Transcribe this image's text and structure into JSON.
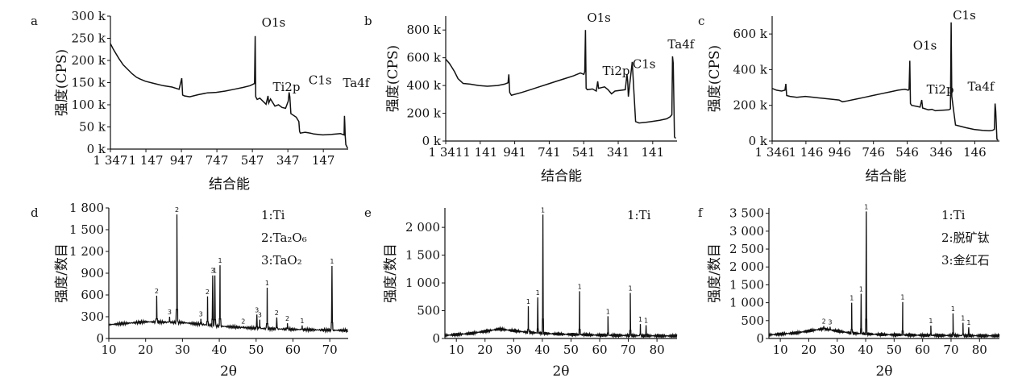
{
  "chart_data": [
    {
      "type": "line",
      "panel_label": "a",
      "xlabel": "结合能",
      "ylabel": "强度(CPS)",
      "xlim": [
        1347,
        7
      ],
      "ylim": [
        0,
        300
      ],
      "x_ticks": [
        {
          "v": 1347,
          "t": "1 347"
        },
        {
          "v": 1147,
          "t": "1 147"
        },
        {
          "v": 947,
          "t": "947"
        },
        {
          "v": 747,
          "t": "747"
        },
        {
          "v": 547,
          "t": "547"
        },
        {
          "v": 347,
          "t": "347"
        },
        {
          "v": 147,
          "t": "147"
        }
      ],
      "y_ticks": [
        {
          "v": 0,
          "t": "0 k"
        },
        {
          "v": 50,
          "t": "50 k"
        },
        {
          "v": 100,
          "t": "100 k"
        },
        {
          "v": 150,
          "t": "150 k"
        },
        {
          "v": 200,
          "t": "200 k"
        },
        {
          "v": 250,
          "t": "250 k"
        },
        {
          "v": 300,
          "t": "300 k"
        }
      ],
      "x": [
        1347,
        1330,
        1300,
        1275,
        1250,
        1225,
        1200,
        1180,
        1150,
        1100,
        1050,
        1000,
        960,
        945,
        940,
        930,
        900,
        850,
        800,
        750,
        700,
        650,
        600,
        560,
        535,
        531,
        528,
        520,
        505,
        470,
        459,
        455,
        445,
        420,
        400,
        380,
        360,
        345,
        340,
        336,
        330,
        300,
        285,
        281,
        277,
        250,
        220,
        200,
        150,
        100,
        50,
        30,
        28,
        26,
        24,
        20,
        10
      ],
      "values": [
        238,
        225,
        205,
        190,
        180,
        170,
        162,
        158,
        153,
        148,
        143,
        140,
        135,
        160,
        122,
        120,
        118,
        123,
        127,
        128,
        131,
        135,
        139,
        143,
        148,
        255,
        118,
        112,
        115,
        101,
        120,
        104,
        113,
        97,
        100,
        94,
        92,
        108,
        128,
        118,
        80,
        72,
        62,
        40,
        36,
        38,
        36,
        34,
        32,
        33,
        35,
        32,
        75,
        58,
        30,
        10,
        2
      ],
      "annotations": [
        {
          "text": "O1s",
          "x": 531,
          "y": 255
        },
        {
          "text": "Ti2p",
          "x": 459,
          "y": 120
        },
        {
          "text": "C1s",
          "x": 285,
          "y": 128
        },
        {
          "text": "Ta4f",
          "x": 28,
          "y": 75
        }
      ]
    },
    {
      "type": "line",
      "panel_label": "b",
      "xlabel": "结合能",
      "ylabel": "强度(CPS)",
      "xlim": [
        1341,
        0
      ],
      "ylim": [
        0,
        900
      ],
      "x_ticks": [
        {
          "v": 1341,
          "t": "1 341"
        },
        {
          "v": 1141,
          "t": "1 141"
        },
        {
          "v": 941,
          "t": "941"
        },
        {
          "v": 741,
          "t": "741"
        },
        {
          "v": 541,
          "t": "541"
        },
        {
          "v": 341,
          "t": "341"
        },
        {
          "v": 141,
          "t": "141"
        }
      ],
      "y_ticks": [
        {
          "v": 0,
          "t": "0 k"
        },
        {
          "v": 200,
          "t": "200 k"
        },
        {
          "v": 400,
          "t": "400 k"
        },
        {
          "v": 600,
          "t": "600 k"
        },
        {
          "v": 800,
          "t": "800 k"
        }
      ],
      "x": [
        1341,
        1320,
        1300,
        1290,
        1270,
        1240,
        1200,
        1150,
        1100,
        1040,
        1000,
        980,
        975,
        970,
        960,
        900,
        850,
        800,
        750,
        700,
        650,
        600,
        560,
        540,
        535,
        531,
        527,
        520,
        490,
        468,
        460,
        455,
        420,
        400,
        380,
        360,
        300,
        290,
        286,
        282,
        260,
        240,
        220,
        180,
        150,
        100,
        60,
        40,
        30,
        26,
        22,
        15,
        8
      ],
      "values": [
        590,
        560,
        520,
        500,
        450,
        415,
        410,
        400,
        395,
        400,
        410,
        420,
        480,
        350,
        330,
        350,
        370,
        390,
        410,
        430,
        450,
        470,
        490,
        480,
        500,
        800,
        380,
        370,
        375,
        360,
        430,
        380,
        390,
        370,
        340,
        360,
        370,
        480,
        430,
        320,
        570,
        140,
        130,
        135,
        140,
        150,
        160,
        175,
        190,
        610,
        560,
        30,
        20
      ],
      "annotations": [
        {
          "text": "O1s",
          "x": 531,
          "y": 800
        },
        {
          "text": "Ti2p",
          "x": 460,
          "y": 430
        },
        {
          "text": "C1s",
          "x": 286,
          "y": 480
        },
        {
          "text": "Ta4f",
          "x": 26,
          "y": 610
        }
      ]
    },
    {
      "type": "line",
      "panel_label": "c",
      "xlabel": "结合能",
      "ylabel": "强度(CPS)",
      "xlim": [
        1346,
        0
      ],
      "ylim": [
        0,
        700
      ],
      "x_ticks": [
        {
          "v": 1346,
          "t": "1 346"
        },
        {
          "v": 1146,
          "t": "1 146"
        },
        {
          "v": 946,
          "t": "946"
        },
        {
          "v": 746,
          "t": "746"
        },
        {
          "v": 546,
          "t": "546"
        },
        {
          "v": 346,
          "t": "346"
        },
        {
          "v": 146,
          "t": "146"
        }
      ],
      "y_ticks": [
        {
          "v": 0,
          "t": "0 k"
        },
        {
          "v": 200,
          "t": "200 k"
        },
        {
          "v": 400,
          "t": "400 k"
        },
        {
          "v": 600,
          "t": "600 k"
        }
      ],
      "x": [
        1346,
        1320,
        1290,
        1270,
        1265,
        1260,
        1240,
        1200,
        1150,
        1100,
        1050,
        1000,
        950,
        930,
        900,
        850,
        800,
        750,
        700,
        650,
        600,
        560,
        540,
        535,
        531,
        527,
        520,
        470,
        460,
        455,
        420,
        400,
        380,
        300,
        290,
        286,
        282,
        260,
        200,
        150,
        100,
        60,
        40,
        30,
        26,
        22,
        15,
        8
      ],
      "values": [
        295,
        285,
        280,
        285,
        320,
        255,
        250,
        245,
        250,
        245,
        240,
        235,
        230,
        220,
        225,
        235,
        245,
        255,
        265,
        275,
        285,
        290,
        285,
        290,
        450,
        210,
        200,
        190,
        230,
        185,
        175,
        178,
        170,
        175,
        180,
        665,
        250,
        90,
        75,
        65,
        60,
        58,
        60,
        65,
        210,
        170,
        10,
        5
      ],
      "annotations": [
        {
          "text": "O1s",
          "x": 531,
          "y": 450
        },
        {
          "text": "Ti2p",
          "x": 460,
          "y": 230
        },
        {
          "text": "C1s",
          "x": 286,
          "y": 665
        },
        {
          "text": "Ta4f",
          "x": 26,
          "y": 210
        }
      ]
    },
    {
      "type": "line",
      "panel_label": "d",
      "xlabel": "2θ",
      "ylabel": "强度/数目",
      "xlim": [
        10,
        75
      ],
      "ylim": [
        0,
        1800
      ],
      "x_ticks": [
        {
          "v": 10,
          "t": "10"
        },
        {
          "v": 20,
          "t": "20"
        },
        {
          "v": 30,
          "t": "30"
        },
        {
          "v": 40,
          "t": "40"
        },
        {
          "v": 50,
          "t": "50"
        },
        {
          "v": 60,
          "t": "60"
        },
        {
          "v": 70,
          "t": "70"
        }
      ],
      "y_ticks": [
        {
          "v": 0,
          "t": "0"
        },
        {
          "v": 300,
          "t": "300"
        },
        {
          "v": 600,
          "t": "600"
        },
        {
          "v": 900,
          "t": "900"
        },
        {
          "v": 1200,
          "t": "1 200"
        },
        {
          "v": 1500,
          "t": "1 500"
        },
        {
          "v": 1800,
          "t": "1 800"
        }
      ],
      "baseline": [
        [
          10,
          190
        ],
        [
          20,
          230
        ],
        [
          30,
          220
        ],
        [
          40,
          170
        ],
        [
          50,
          140
        ],
        [
          60,
          125
        ],
        [
          70,
          115
        ],
        [
          75,
          110
        ]
      ],
      "peaks": [
        {
          "x": 23.0,
          "y": 590,
          "label": "2"
        },
        {
          "x": 26.5,
          "y": 300,
          "label": "3"
        },
        {
          "x": 28.5,
          "y": 1710,
          "label": "2"
        },
        {
          "x": 35.0,
          "y": 270,
          "label": "3"
        },
        {
          "x": 36.8,
          "y": 580,
          "label": "2"
        },
        {
          "x": 38.2,
          "y": 870,
          "label": "3"
        },
        {
          "x": 38.8,
          "y": 870,
          "label": "1"
        },
        {
          "x": 40.2,
          "y": 1010,
          "label": "1"
        },
        {
          "x": 46.5,
          "y": 170,
          "label": "2"
        },
        {
          "x": 50.2,
          "y": 330,
          "label": "3"
        },
        {
          "x": 51.0,
          "y": 260,
          "label": "3"
        },
        {
          "x": 53.0,
          "y": 700,
          "label": "1"
        },
        {
          "x": 55.6,
          "y": 290,
          "label": "2"
        },
        {
          "x": 58.5,
          "y": 210,
          "label": "2"
        },
        {
          "x": 62.5,
          "y": 180,
          "label": "1"
        },
        {
          "x": 70.6,
          "y": 1000,
          "label": "1"
        }
      ],
      "legend": [
        "1:Ti",
        "2:Ta₂O₆",
        "3:TaO₂"
      ]
    },
    {
      "type": "line",
      "panel_label": "e",
      "xlabel": "2θ",
      "ylabel": "强度/数目",
      "xlim": [
        6,
        87
      ],
      "ylim": [
        0,
        2350
      ],
      "x_ticks": [
        {
          "v": 10,
          "t": "10"
        },
        {
          "v": 20,
          "t": "20"
        },
        {
          "v": 30,
          "t": "30"
        },
        {
          "v": 40,
          "t": "40"
        },
        {
          "v": 50,
          "t": "50"
        },
        {
          "v": 60,
          "t": "60"
        },
        {
          "v": 70,
          "t": "70"
        },
        {
          "v": 80,
          "t": "80"
        }
      ],
      "y_ticks": [
        {
          "v": 0,
          "t": "0"
        },
        {
          "v": 500,
          "t": "500"
        },
        {
          "v": 1000,
          "t": "1 000"
        },
        {
          "v": 1500,
          "t": "1 500"
        },
        {
          "v": 2000,
          "t": "2 000"
        }
      ],
      "baseline": [
        [
          6,
          55
        ],
        [
          15,
          90
        ],
        [
          25,
          170
        ],
        [
          35,
          110
        ],
        [
          45,
          80
        ],
        [
          60,
          60
        ],
        [
          75,
          50
        ],
        [
          87,
          45
        ]
      ],
      "peaks": [
        {
          "x": 35.1,
          "y": 580,
          "label": "1"
        },
        {
          "x": 38.4,
          "y": 740,
          "label": "1"
        },
        {
          "x": 40.2,
          "y": 2230,
          "label": "1"
        },
        {
          "x": 53.0,
          "y": 850,
          "label": "1"
        },
        {
          "x": 62.9,
          "y": 400,
          "label": "1"
        },
        {
          "x": 70.7,
          "y": 820,
          "label": "1"
        },
        {
          "x": 74.2,
          "y": 260,
          "label": "1"
        },
        {
          "x": 76.2,
          "y": 240,
          "label": "1"
        }
      ],
      "legend": [
        "1:Ti"
      ]
    },
    {
      "type": "line",
      "panel_label": "f",
      "xlabel": "2θ",
      "ylabel": "强度/数目",
      "xlim": [
        6,
        87
      ],
      "ylim": [
        0,
        3650
      ],
      "x_ticks": [
        {
          "v": 10,
          "t": "10"
        },
        {
          "v": 20,
          "t": "20"
        },
        {
          "v": 30,
          "t": "30"
        },
        {
          "v": 40,
          "t": "40"
        },
        {
          "v": 50,
          "t": "50"
        },
        {
          "v": 60,
          "t": "60"
        },
        {
          "v": 70,
          "t": "70"
        },
        {
          "v": 80,
          "t": "80"
        }
      ],
      "y_ticks": [
        {
          "v": 0,
          "t": "0"
        },
        {
          "v": 500,
          "t": "500"
        },
        {
          "v": 1000,
          "t": "1 000"
        },
        {
          "v": 1500,
          "t": "1 500"
        },
        {
          "v": 2000,
          "t": "2 000"
        },
        {
          "v": 2500,
          "t": "2 500"
        },
        {
          "v": 3000,
          "t": "3 000"
        },
        {
          "v": 3500,
          "t": "3 500"
        }
      ],
      "baseline": [
        [
          6,
          100
        ],
        [
          15,
          150
        ],
        [
          25,
          270
        ],
        [
          35,
          150
        ],
        [
          45,
          110
        ],
        [
          60,
          90
        ],
        [
          75,
          80
        ],
        [
          87,
          75
        ]
      ],
      "peaks": [
        {
          "x": 25.3,
          "y": 350,
          "label": "2"
        },
        {
          "x": 27.5,
          "y": 330,
          "label": "3"
        },
        {
          "x": 35.1,
          "y": 1000,
          "label": "1"
        },
        {
          "x": 38.4,
          "y": 1250,
          "label": "1"
        },
        {
          "x": 40.2,
          "y": 3550,
          "label": "1"
        },
        {
          "x": 53.0,
          "y": 1020,
          "label": "1"
        },
        {
          "x": 62.9,
          "y": 360,
          "label": "1"
        },
        {
          "x": 70.7,
          "y": 700,
          "label": "1"
        },
        {
          "x": 74.2,
          "y": 440,
          "label": "1"
        },
        {
          "x": 76.2,
          "y": 310,
          "label": "1"
        }
      ],
      "legend": [
        "1:Ti",
        "2:脱矿钛",
        "3:金红石"
      ]
    }
  ]
}
